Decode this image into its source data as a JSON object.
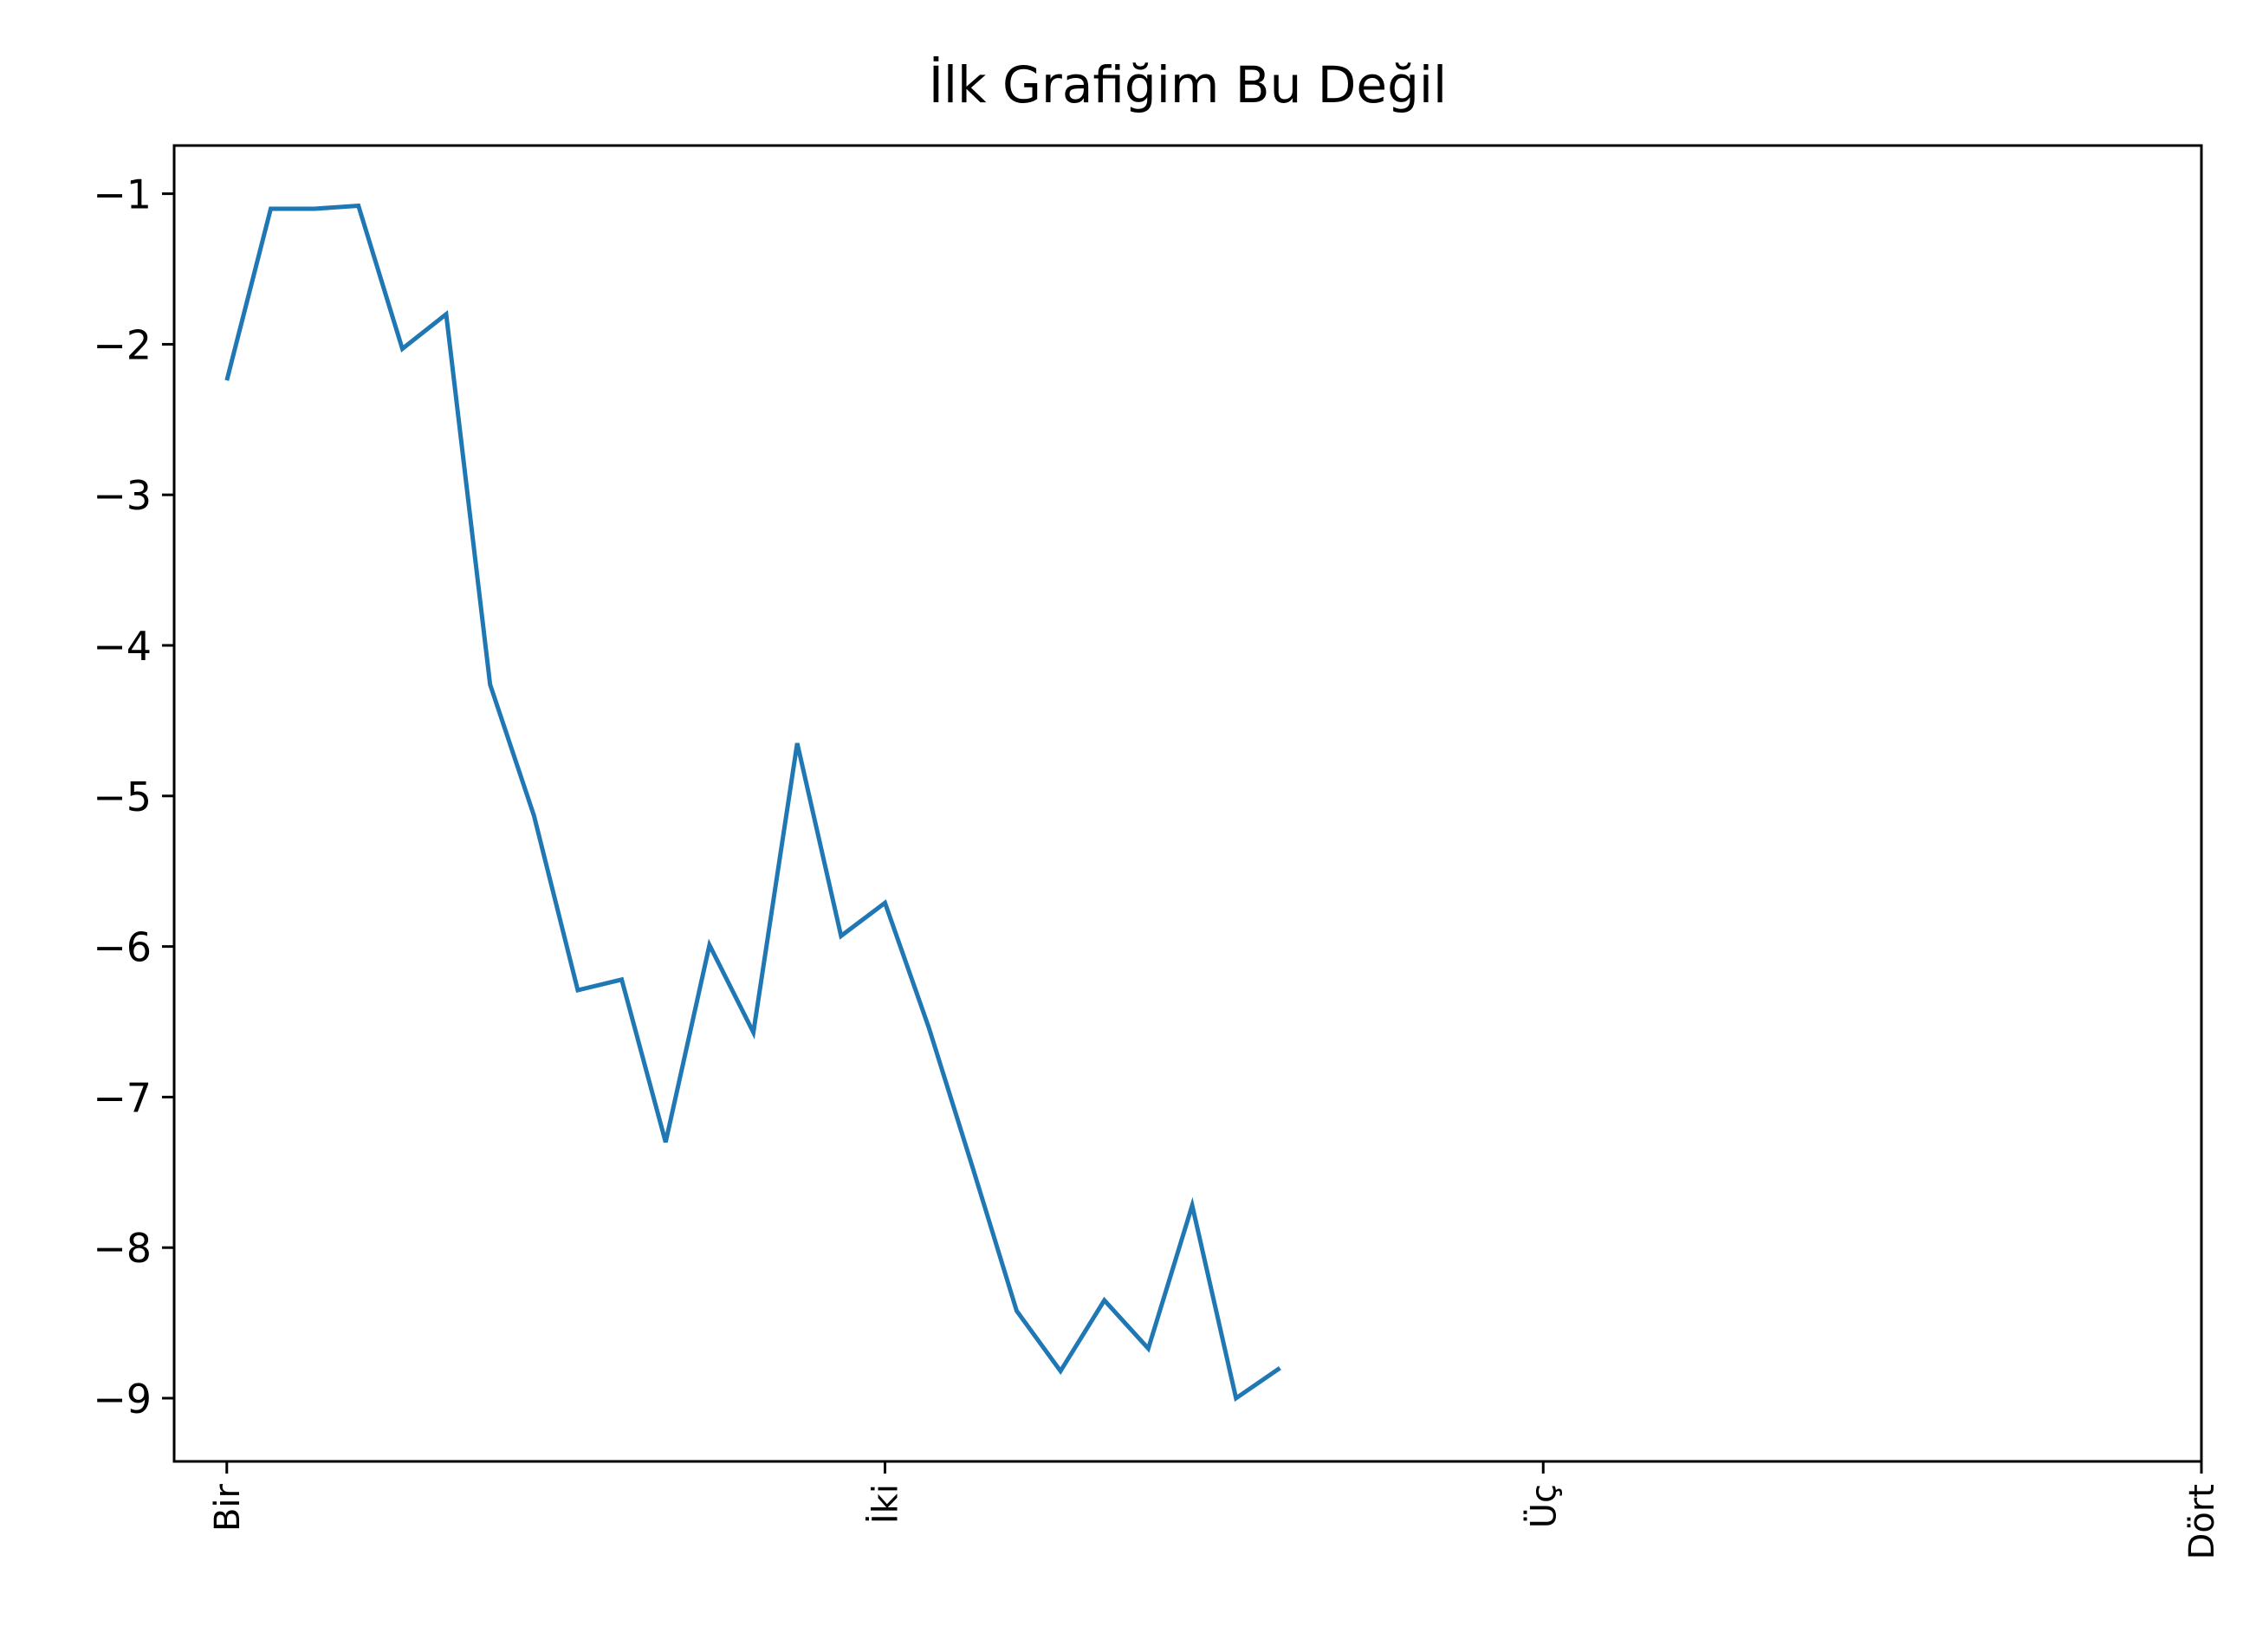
{
  "chart_data": {
    "type": "line",
    "title": "İlk Grafiğim Bu Değil",
    "xlabel": "",
    "ylabel": "",
    "xlim": [
      -0.08,
      3.0
    ],
    "ylim": [
      -9.42,
      -0.68
    ],
    "grid": false,
    "legend": "none",
    "x_ticks": [
      {
        "value": 0,
        "label": "Bir"
      },
      {
        "value": 1,
        "label": "İki"
      },
      {
        "value": 2,
        "label": "Üç"
      },
      {
        "value": 3,
        "label": "Dört"
      }
    ],
    "y_ticks": [
      {
        "value": -1,
        "label": "−1"
      },
      {
        "value": -2,
        "label": "−2"
      },
      {
        "value": -3,
        "label": "−3"
      },
      {
        "value": -4,
        "label": "−4"
      },
      {
        "value": -5,
        "label": "−5"
      },
      {
        "value": -6,
        "label": "−6"
      },
      {
        "value": -7,
        "label": "−7"
      },
      {
        "value": -8,
        "label": "−8"
      },
      {
        "value": -9,
        "label": "−9"
      }
    ],
    "series": [
      {
        "color": "#1f77b4",
        "x": [
          0.0,
          0.0667,
          0.1333,
          0.2,
          0.2667,
          0.3333,
          0.4,
          0.4667,
          0.5333,
          0.6,
          0.6667,
          0.7333,
          0.8,
          0.8667,
          0.9333,
          1.0,
          1.0667,
          1.1333,
          1.2,
          1.2667,
          1.3333,
          1.4,
          1.4667,
          1.5333,
          1.6
        ],
        "values": [
          -2.24,
          -1.1,
          -1.1,
          -1.08,
          -2.03,
          -1.8,
          -4.26,
          -5.13,
          -6.29,
          -6.22,
          -7.3,
          -5.99,
          -6.57,
          -4.65,
          -5.93,
          -5.71,
          -6.54,
          -7.47,
          -8.42,
          -8.82,
          -8.35,
          -8.67,
          -7.72,
          -9.0,
          -8.8
        ]
      }
    ]
  }
}
